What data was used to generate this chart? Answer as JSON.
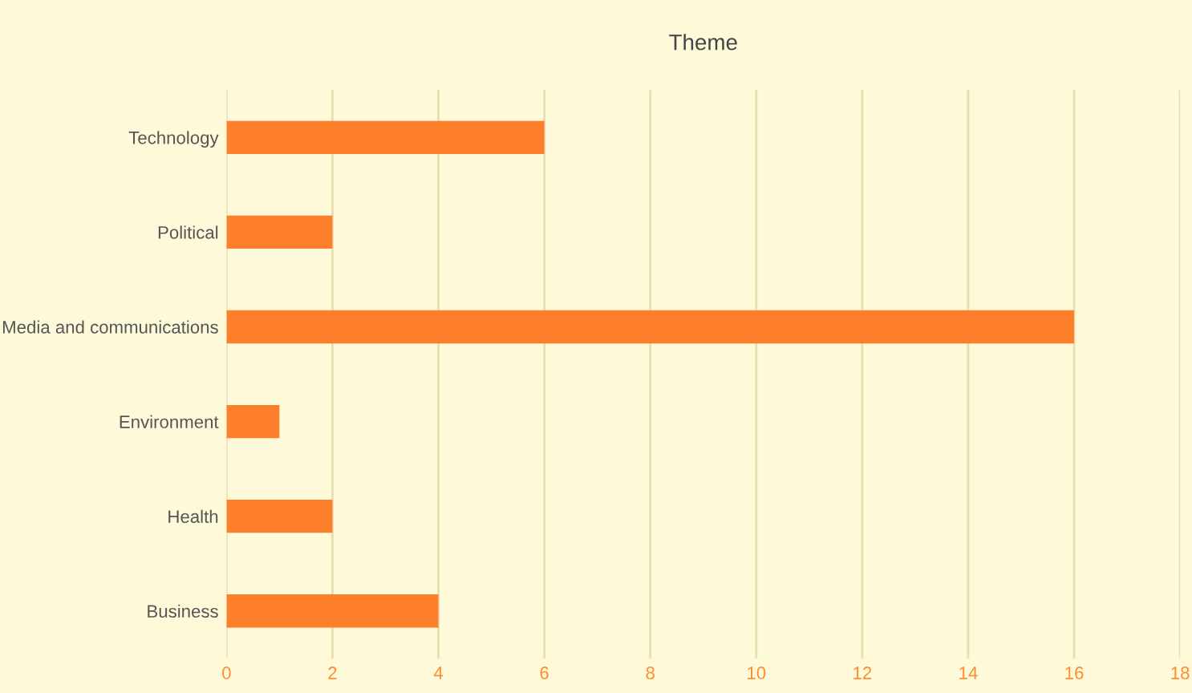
{
  "chart_data": {
    "type": "bar",
    "orientation": "horizontal",
    "title": "Theme",
    "categories": [
      "Technology",
      "Political",
      "Media and communications",
      "Environment",
      "Health",
      "Business"
    ],
    "values": [
      6,
      2,
      16,
      1,
      2,
      4
    ],
    "color": "#fd7f2b",
    "xlim": [
      0,
      18
    ],
    "xticks": [
      0,
      2,
      4,
      6,
      8,
      10,
      12,
      14,
      16,
      18
    ],
    "grid": "x",
    "legend": false
  }
}
